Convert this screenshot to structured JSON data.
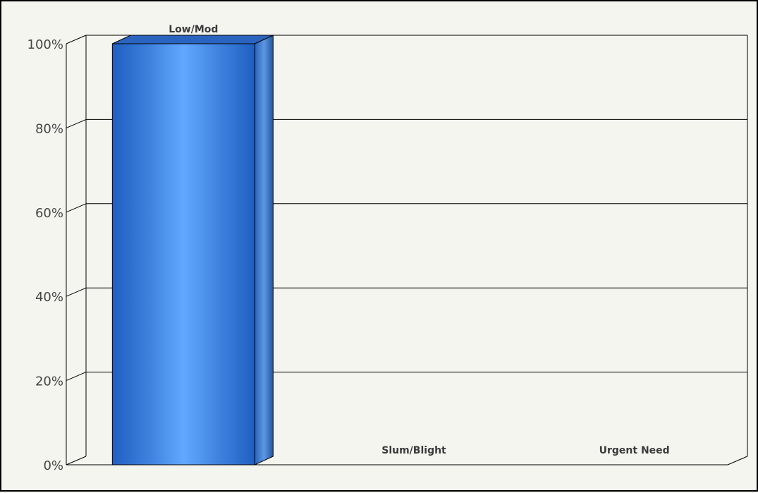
{
  "chart_data": {
    "type": "bar",
    "title": "",
    "xlabel": "",
    "ylabel": "",
    "categories": [
      "Low/Mod",
      "Slum/Blight",
      "Urgent Need"
    ],
    "values": [
      100,
      0,
      0
    ],
    "value_unit": "%",
    "ylim": [
      0,
      100
    ],
    "yticks": [
      "0%",
      "20%",
      "40%",
      "60%",
      "80%",
      "100%"
    ],
    "grid": true,
    "style": "3d",
    "bar_color": "#3a7ad8"
  }
}
